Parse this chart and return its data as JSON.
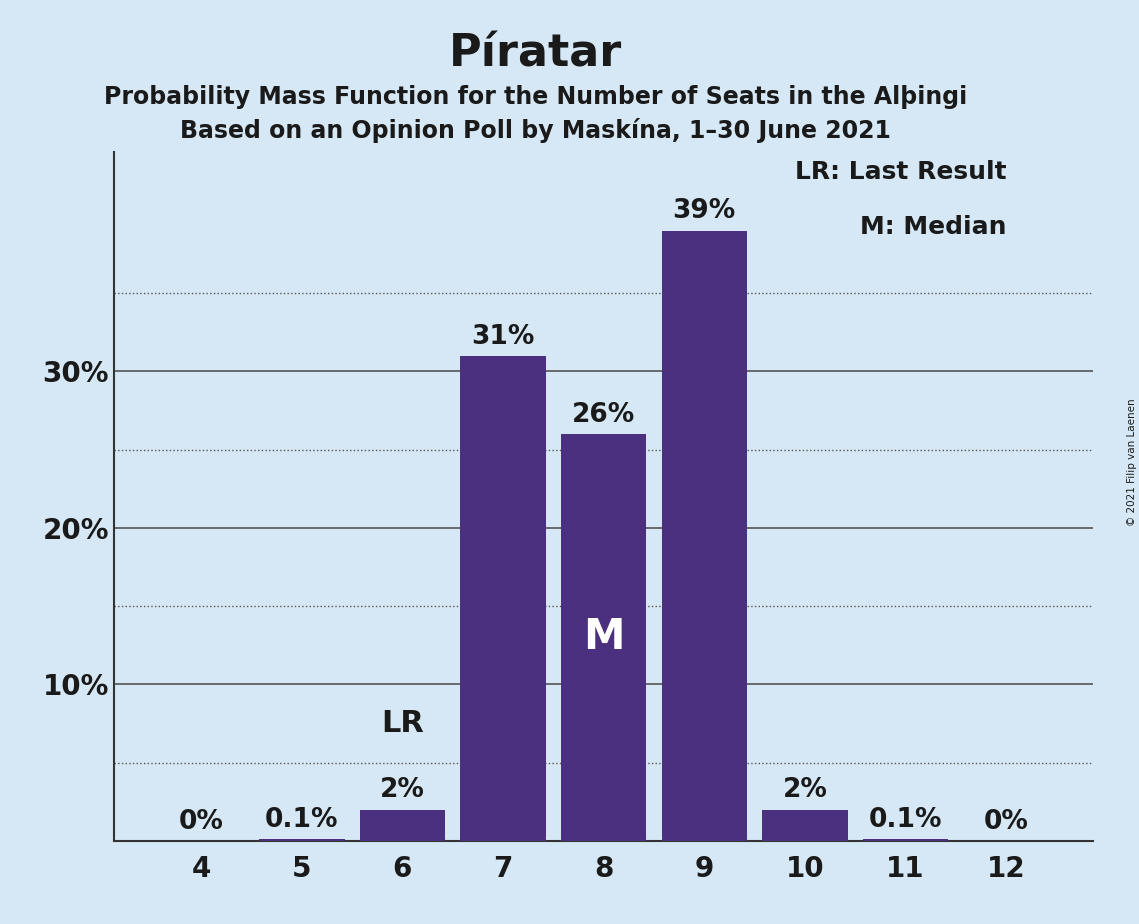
{
  "title": "Píratar",
  "subtitle1": "Probability Mass Function for the Number of Seats in the Alþingi",
  "subtitle2": "Based on an Opinion Poll by Maskína, 1–30 June 2021",
  "copyright": "© 2021 Filip van Laenen",
  "categories": [
    4,
    5,
    6,
    7,
    8,
    9,
    10,
    11,
    12
  ],
  "values": [
    0.0,
    0.1,
    2.0,
    31.0,
    26.0,
    39.0,
    2.0,
    0.1,
    0.0
  ],
  "bar_color": "#4B3080",
  "background_color": "#D6E8F5",
  "text_color": "#1a1a1a",
  "bar_labels": [
    "0%",
    "0.1%",
    "2%",
    "31%",
    "26%",
    "39%",
    "2%",
    "0.1%",
    "0%"
  ],
  "lr_bar_index": 2,
  "m_bar_index": 4,
  "lr_label": "LR",
  "m_label": "M",
  "legend_lr": "LR: Last Result",
  "legend_m": "M: Median",
  "ylim": [
    0,
    44
  ],
  "solid_grid_ticks": [
    10,
    20,
    30
  ],
  "dotted_grid_ticks": [
    5,
    15,
    25,
    35
  ],
  "ytick_labels_map": {
    "10": "10%",
    "20": "20%",
    "30": "30%"
  },
  "grid_color": "#555555",
  "title_fontsize": 32,
  "subtitle_fontsize": 17,
  "bar_label_fontsize": 19,
  "axis_label_fontsize": 20,
  "legend_fontsize": 18,
  "lr_m_label_fontsize": 22
}
